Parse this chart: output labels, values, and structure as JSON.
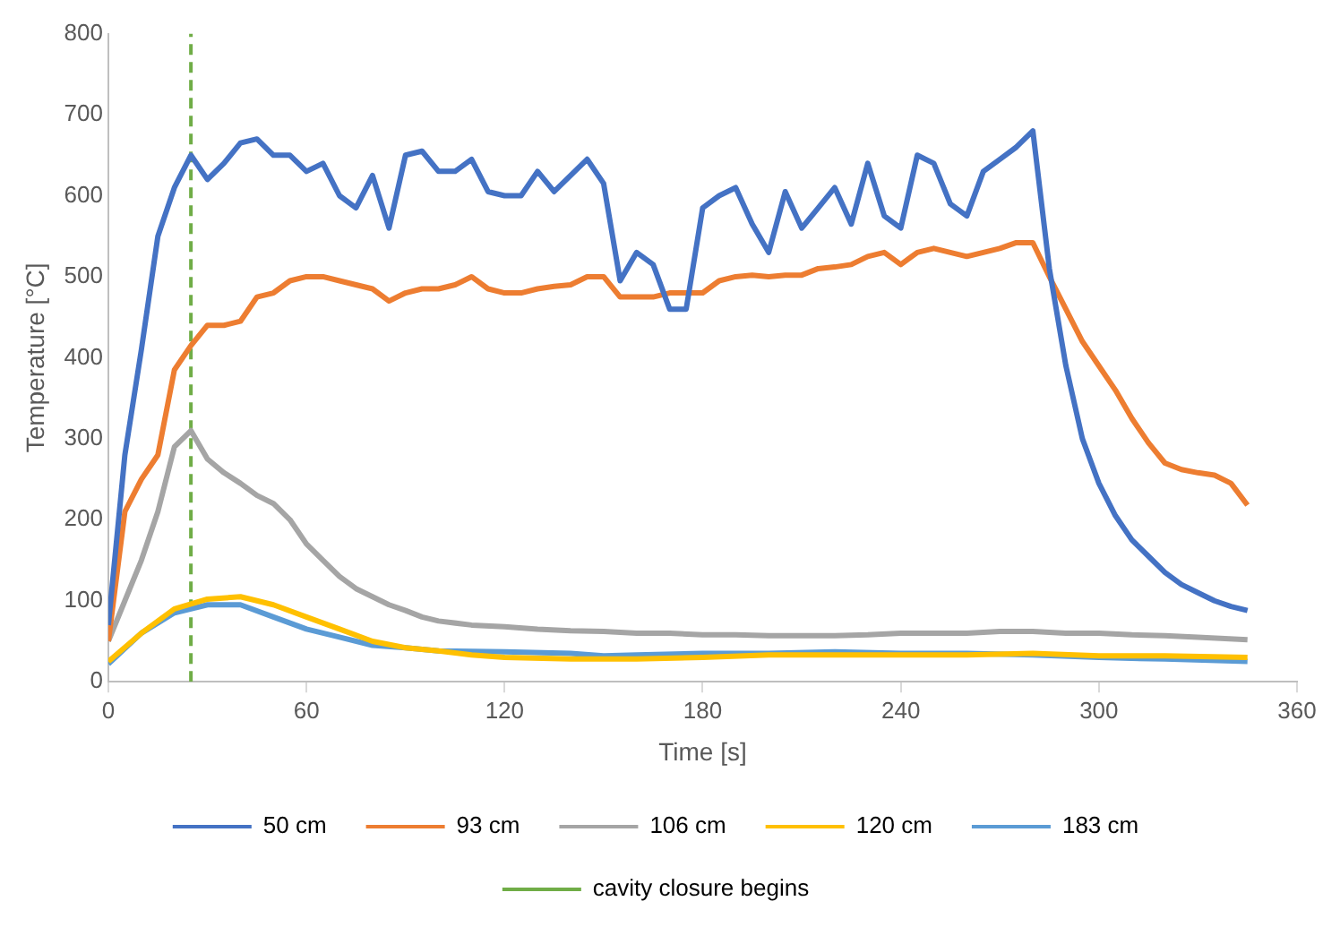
{
  "chart_data": {
    "type": "line",
    "xlabel": "Time [s]",
    "ylabel": "Temperature [°C]",
    "xlim": [
      0,
      360
    ],
    "xticks": [
      0,
      60,
      120,
      180,
      240,
      300,
      360
    ],
    "ylim": [
      0,
      800
    ],
    "yticks": [
      0,
      100,
      200,
      300,
      400,
      500,
      600,
      700,
      800
    ],
    "grid": false,
    "legend": "bottom",
    "marker": "none",
    "line_style": "solid",
    "series": [
      {
        "name": "50 cm",
        "color": "#4472c4",
        "x": [
          0,
          5,
          10,
          15,
          20,
          25,
          30,
          35,
          40,
          45,
          50,
          55,
          60,
          65,
          70,
          75,
          80,
          85,
          90,
          95,
          100,
          105,
          110,
          115,
          120,
          125,
          130,
          135,
          140,
          145,
          150,
          155,
          160,
          165,
          170,
          175,
          180,
          185,
          190,
          195,
          200,
          205,
          210,
          215,
          220,
          225,
          230,
          235,
          240,
          245,
          250,
          255,
          260,
          265,
          270,
          275,
          280,
          285,
          290,
          295,
          300,
          305,
          310,
          315,
          320,
          325,
          330,
          335,
          340,
          345
        ],
        "values": [
          70,
          280,
          410,
          550,
          610,
          650,
          620,
          640,
          665,
          670,
          650,
          650,
          630,
          640,
          600,
          585,
          625,
          560,
          650,
          655,
          630,
          630,
          645,
          605,
          600,
          600,
          630,
          605,
          625,
          645,
          615,
          495,
          530,
          515,
          460,
          460,
          585,
          600,
          610,
          565,
          530,
          605,
          560,
          585,
          610,
          565,
          640,
          575,
          560,
          650,
          640,
          590,
          575,
          630,
          645,
          660,
          680,
          510,
          390,
          300,
          245,
          205,
          175,
          155,
          135,
          120,
          110,
          100,
          93,
          88
        ]
      },
      {
        "name": "93 cm",
        "color": "#ed7d31",
        "x": [
          0,
          5,
          10,
          15,
          20,
          25,
          30,
          35,
          40,
          45,
          50,
          55,
          60,
          65,
          70,
          75,
          80,
          85,
          90,
          95,
          100,
          105,
          110,
          115,
          120,
          125,
          130,
          135,
          140,
          145,
          150,
          155,
          160,
          165,
          170,
          175,
          180,
          185,
          190,
          195,
          200,
          205,
          210,
          215,
          220,
          225,
          230,
          235,
          240,
          245,
          250,
          255,
          260,
          265,
          270,
          275,
          280,
          285,
          290,
          295,
          300,
          305,
          310,
          315,
          320,
          325,
          330,
          335,
          340,
          345
        ],
        "values": [
          50,
          210,
          250,
          280,
          385,
          415,
          440,
          440,
          445,
          475,
          480,
          495,
          500,
          500,
          495,
          490,
          485,
          470,
          480,
          485,
          485,
          490,
          500,
          485,
          480,
          480,
          485,
          488,
          490,
          500,
          500,
          475,
          475,
          475,
          480,
          480,
          480,
          495,
          500,
          502,
          500,
          502,
          502,
          510,
          512,
          515,
          525,
          530,
          515,
          530,
          535,
          530,
          525,
          530,
          535,
          542,
          542,
          500,
          460,
          420,
          390,
          360,
          325,
          295,
          270,
          262,
          258,
          255,
          245,
          218
        ]
      },
      {
        "name": "106 cm",
        "color": "#a5a5a5",
        "x": [
          0,
          5,
          10,
          15,
          20,
          25,
          30,
          35,
          40,
          45,
          50,
          55,
          60,
          65,
          70,
          75,
          80,
          85,
          90,
          95,
          100,
          110,
          120,
          130,
          140,
          150,
          160,
          170,
          180,
          190,
          200,
          210,
          220,
          230,
          240,
          250,
          260,
          270,
          280,
          290,
          300,
          310,
          320,
          330,
          345
        ],
        "values": [
          50,
          100,
          150,
          210,
          290,
          310,
          275,
          258,
          245,
          230,
          220,
          200,
          170,
          150,
          130,
          115,
          105,
          95,
          88,
          80,
          75,
          70,
          68,
          65,
          63,
          62,
          60,
          60,
          58,
          58,
          57,
          57,
          57,
          58,
          60,
          60,
          60,
          62,
          62,
          60,
          60,
          58,
          57,
          55,
          52
        ]
      },
      {
        "name": "120 cm",
        "color": "#ffc000",
        "x": [
          0,
          10,
          20,
          30,
          40,
          50,
          60,
          70,
          80,
          90,
          100,
          110,
          120,
          140,
          160,
          180,
          200,
          220,
          240,
          260,
          280,
          300,
          320,
          345
        ],
        "values": [
          25,
          60,
          90,
          102,
          105,
          95,
          80,
          65,
          50,
          42,
          38,
          33,
          30,
          28,
          28,
          30,
          33,
          33,
          33,
          33,
          35,
          32,
          32,
          30
        ]
      },
      {
        "name": "183 cm",
        "color": "#5b9bd5",
        "x": [
          0,
          10,
          20,
          30,
          40,
          50,
          60,
          70,
          80,
          90,
          100,
          120,
          140,
          150,
          160,
          180,
          200,
          220,
          240,
          260,
          280,
          300,
          320,
          345
        ],
        "values": [
          22,
          60,
          85,
          95,
          95,
          80,
          65,
          55,
          45,
          42,
          38,
          37,
          35,
          32,
          33,
          35,
          35,
          37,
          35,
          35,
          33,
          30,
          28,
          25
        ]
      }
    ],
    "ref_lines": [
      {
        "axis": "x",
        "value": 25,
        "label": "cavity closure begins",
        "color": "#70ad47",
        "line_style": "dashed"
      }
    ]
  }
}
